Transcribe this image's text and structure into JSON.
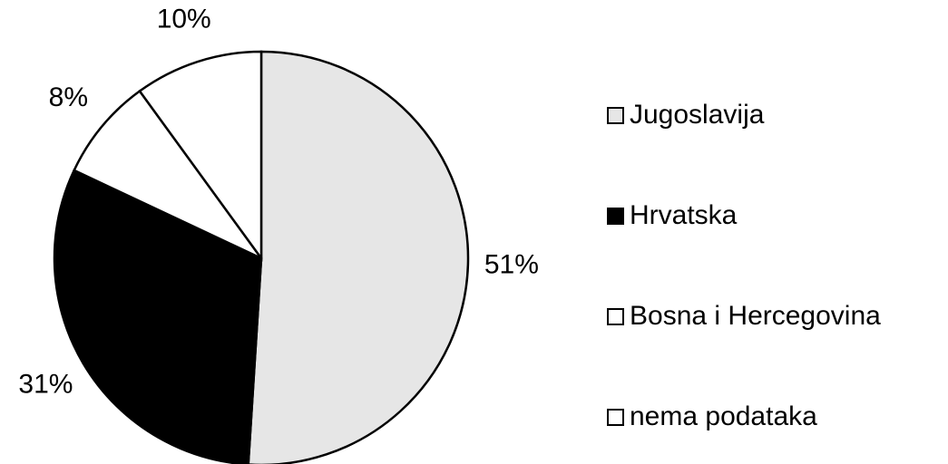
{
  "chart_data": {
    "type": "pie",
    "categories": [
      "Jugoslavija",
      "Hrvatska",
      "Bosna i Hercegovina",
      "nema podataka"
    ],
    "values": [
      51,
      31,
      8,
      10
    ],
    "value_labels": [
      "51%",
      "31%",
      "8%",
      "10%"
    ],
    "colors": [
      "#e6e6e6",
      "#000000",
      "#ffffff",
      "#ffffff"
    ],
    "legend": "right"
  }
}
